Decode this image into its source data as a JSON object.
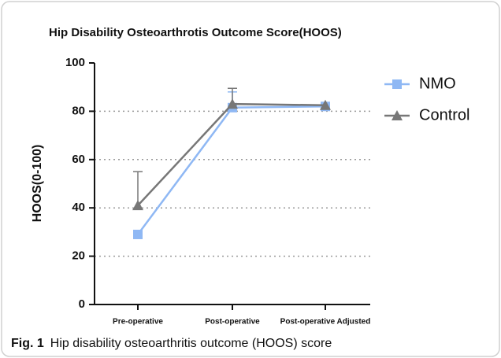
{
  "chart_data": {
    "type": "line",
    "title": "Hip Disability Osteoarthrotis Outcome Score(HOOS)",
    "y_label": "HOOS(0-100)",
    "categories": [
      "Pre-operative",
      "Post-operative",
      "Post-operative Adjusted"
    ],
    "series": [
      {
        "name": "NMO",
        "color": "#8fb8f4",
        "marker": "square",
        "values": [
          29,
          81.5,
          82
        ],
        "errors": [
          null,
          6.5,
          null
        ]
      },
      {
        "name": "Control",
        "color": "#777777",
        "marker": "triangle",
        "values": [
          41,
          83,
          82.5
        ],
        "errors": [
          14,
          6.5,
          1
        ]
      }
    ],
    "ylim": [
      0,
      100
    ],
    "yticks": [
      0,
      20,
      40,
      60,
      80,
      100
    ],
    "grid": true,
    "legend": "right",
    "caption": {
      "label": "Fig. 1",
      "text": "Hip disability osteoarthritis outcome (HOOS) score"
    }
  }
}
